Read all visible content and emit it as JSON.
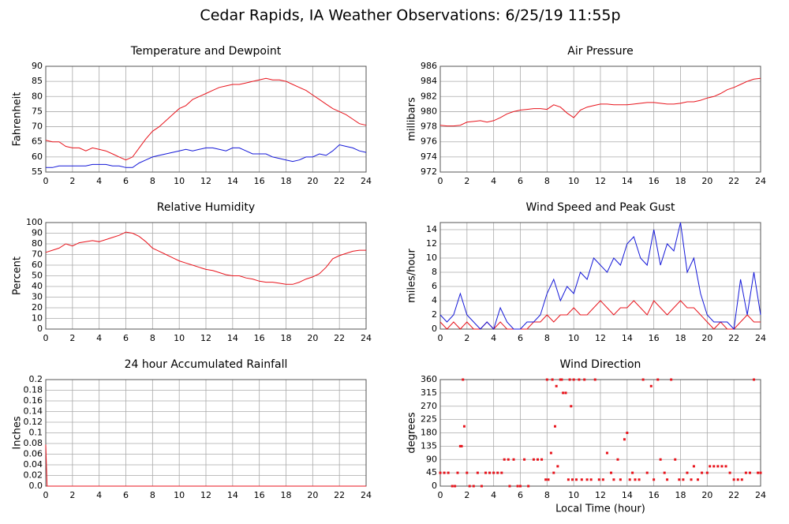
{
  "title": "Cedar Rapids, IA Weather Observations: 6/25/19 11:55p",
  "chart_data": [
    {
      "type": "line",
      "title": "Temperature and Dewpoint",
      "ylabel": "Fahrenheit",
      "grid": true,
      "x": [
        0,
        0.5,
        1,
        1.5,
        2,
        2.5,
        3,
        3.5,
        4,
        4.5,
        5,
        5.5,
        6,
        6.5,
        7,
        7.5,
        8,
        8.5,
        9,
        9.5,
        10,
        10.5,
        11,
        11.5,
        12,
        12.5,
        13,
        13.5,
        14,
        14.5,
        15,
        15.5,
        16,
        16.5,
        17,
        17.5,
        18,
        18.5,
        19,
        19.5,
        20,
        20.5,
        21,
        21.5,
        22,
        22.5,
        23,
        23.5,
        24
      ],
      "series": [
        {
          "color": "#e8141c",
          "values": [
            65.5,
            65,
            65,
            63.5,
            63,
            63,
            62,
            63,
            62.5,
            62,
            61,
            60,
            59,
            60,
            63,
            66,
            68.5,
            70,
            72,
            74,
            76,
            77,
            79,
            80,
            81,
            82,
            83,
            83.5,
            84,
            84,
            84.5,
            85,
            85.5,
            86,
            85.5,
            85.5,
            85,
            84,
            83,
            82,
            80.5,
            79,
            77.5,
            76,
            75,
            74,
            72.5,
            71,
            70.5
          ]
        },
        {
          "color": "#1418d8",
          "values": [
            56.5,
            56.5,
            57,
            57,
            57,
            57,
            57,
            57.5,
            57.5,
            57.5,
            57,
            57,
            56.5,
            56.5,
            58,
            59,
            60,
            60.5,
            61,
            61.5,
            62,
            62.5,
            62,
            62.5,
            63,
            63,
            62.5,
            62,
            63,
            63,
            62,
            61,
            61,
            61,
            60,
            59.5,
            59,
            58.5,
            59,
            60,
            60,
            61,
            60.5,
            62,
            64,
            63.5,
            63,
            62,
            61.5
          ]
        }
      ],
      "xlim": [
        0,
        24
      ],
      "xticks": [
        0,
        2,
        4,
        6,
        8,
        10,
        12,
        14,
        16,
        18,
        20,
        22,
        24
      ],
      "ylim": [
        55,
        90
      ],
      "yticks": [
        55,
        60,
        65,
        70,
        75,
        80,
        85,
        90
      ]
    },
    {
      "type": "line",
      "title": "Air Pressure",
      "ylabel": "millibars",
      "grid": true,
      "x": [
        0,
        0.5,
        1,
        1.5,
        2,
        2.5,
        3,
        3.5,
        4,
        4.5,
        5,
        5.5,
        6,
        6.5,
        7,
        7.5,
        8,
        8.5,
        9,
        9.5,
        10,
        10.5,
        11,
        11.5,
        12,
        12.5,
        13,
        13.5,
        14,
        14.5,
        15,
        15.5,
        16,
        16.5,
        17,
        17.5,
        18,
        18.5,
        19,
        19.5,
        20,
        20.5,
        21,
        21.5,
        22,
        22.5,
        23,
        23.5,
        24
      ],
      "series": [
        {
          "color": "#e8141c",
          "values": [
            978.2,
            978.1,
            978.1,
            978.2,
            978.6,
            978.7,
            978.8,
            978.6,
            978.8,
            979.2,
            979.7,
            980,
            980.2,
            980.3,
            980.4,
            980.4,
            980.3,
            980.9,
            980.6,
            979.8,
            979.2,
            980.2,
            980.6,
            980.8,
            981,
            981,
            980.9,
            980.9,
            980.9,
            981,
            981.1,
            981.2,
            981.2,
            981.1,
            981,
            981,
            981.1,
            981.3,
            981.3,
            981.5,
            981.8,
            982,
            982.4,
            982.9,
            983.2,
            983.6,
            984,
            984.3,
            984.4
          ]
        }
      ],
      "xlim": [
        0,
        24
      ],
      "xticks": [
        0,
        2,
        4,
        6,
        8,
        10,
        12,
        14,
        16,
        18,
        20,
        22,
        24
      ],
      "ylim": [
        972,
        986
      ],
      "yticks": [
        972,
        974,
        976,
        978,
        980,
        982,
        984,
        986
      ]
    },
    {
      "type": "line",
      "title": "Relative Humidity",
      "ylabel": "Percent",
      "grid": true,
      "x": [
        0,
        0.5,
        1,
        1.5,
        2,
        2.5,
        3,
        3.5,
        4,
        4.5,
        5,
        5.5,
        6,
        6.5,
        7,
        7.5,
        8,
        8.5,
        9,
        9.5,
        10,
        10.5,
        11,
        11.5,
        12,
        12.5,
        13,
        13.5,
        14,
        14.5,
        15,
        15.5,
        16,
        16.5,
        17,
        17.5,
        18,
        18.5,
        19,
        19.5,
        20,
        20.5,
        21,
        21.5,
        22,
        22.5,
        23,
        23.5,
        24
      ],
      "series": [
        {
          "color": "#e8141c",
          "values": [
            72,
            74,
            76,
            80,
            78,
            81,
            82,
            83,
            82,
            84,
            86,
            88,
            91,
            90,
            87,
            82,
            76,
            73,
            70,
            67,
            64,
            62,
            60,
            58,
            56,
            55,
            53,
            51,
            50,
            50,
            48,
            47,
            45,
            44,
            44,
            43,
            42,
            42,
            44,
            47,
            49,
            52,
            58,
            66,
            69,
            71,
            73,
            74,
            74
          ]
        }
      ],
      "xlim": [
        0,
        24
      ],
      "xticks": [
        0,
        2,
        4,
        6,
        8,
        10,
        12,
        14,
        16,
        18,
        20,
        22,
        24
      ],
      "ylim": [
        0,
        100
      ],
      "yticks": [
        0,
        10,
        20,
        30,
        40,
        50,
        60,
        70,
        80,
        90,
        100
      ]
    },
    {
      "type": "line",
      "title": "Wind Speed and Peak Gust",
      "ylabel": "miles/hour",
      "grid": true,
      "x": [
        0,
        0.5,
        1,
        1.5,
        2,
        2.5,
        3,
        3.5,
        4,
        4.5,
        5,
        5.5,
        6,
        6.5,
        7,
        7.5,
        8,
        8.5,
        9,
        9.5,
        10,
        10.5,
        11,
        11.5,
        12,
        12.5,
        13,
        13.5,
        14,
        14.5,
        15,
        15.5,
        16,
        16.5,
        17,
        17.5,
        18,
        18.5,
        19,
        19.5,
        20,
        20.5,
        21,
        21.5,
        22,
        22.5,
        23,
        23.5,
        24
      ],
      "series": [
        {
          "color": "#e8141c",
          "values": [
            1,
            0,
            1,
            0,
            1,
            0,
            0,
            1,
            0,
            1,
            0,
            0,
            0,
            0,
            1,
            1,
            2,
            1,
            2,
            2,
            3,
            2,
            2,
            3,
            4,
            3,
            2,
            3,
            3,
            4,
            3,
            2,
            4,
            3,
            2,
            3,
            4,
            3,
            3,
            2,
            1,
            0,
            1,
            0,
            0,
            1,
            2,
            1,
            1
          ]
        },
        {
          "color": "#1418d8",
          "values": [
            2,
            1,
            2,
            5,
            2,
            1,
            0,
            1,
            0,
            3,
            1,
            0,
            0,
            1,
            1,
            2,
            5,
            7,
            4,
            6,
            5,
            8,
            7,
            10,
            9,
            8,
            10,
            9,
            12,
            13,
            10,
            9,
            14,
            9,
            12,
            11,
            15,
            8,
            10,
            5,
            2,
            1,
            1,
            1,
            0,
            7,
            2,
            8,
            2
          ]
        }
      ],
      "xlim": [
        0,
        24
      ],
      "xticks": [
        0,
        2,
        4,
        6,
        8,
        10,
        12,
        14,
        16,
        18,
        20,
        22,
        24
      ],
      "ylim": [
        0,
        15
      ],
      "yticks": [
        0,
        2,
        4,
        6,
        8,
        10,
        12,
        14
      ]
    },
    {
      "type": "line",
      "title": "24 hour Accumulated Rainfall",
      "ylabel": "Inches",
      "grid": true,
      "x": [
        0,
        0.1,
        24
      ],
      "series": [
        {
          "color": "#e8141c",
          "values": [
            0.078,
            0,
            0
          ]
        }
      ],
      "xlim": [
        0,
        24
      ],
      "xticks": [
        0,
        2,
        4,
        6,
        8,
        10,
        12,
        14,
        16,
        18,
        20,
        22,
        24
      ],
      "ylim": [
        0,
        0.2
      ],
      "yticks": [
        {
          "value": 0,
          "label": "0.0"
        },
        0.02,
        0.04,
        0.06,
        0.08,
        0.1,
        0.12,
        0.14,
        0.16,
        0.18,
        0.2
      ]
    },
    {
      "type": "scatter",
      "title": "Wind Direction",
      "ylabel": "degrees",
      "xlabel": "Local Time (hour)",
      "grid": true,
      "color": "#e8141c",
      "x": [
        0,
        0.3,
        0.6,
        0.9,
        1.1,
        1.3,
        1.5,
        1.6,
        1.7,
        1.8,
        2,
        2.2,
        2.5,
        2.8,
        3.1,
        3.4,
        3.7,
        4,
        4.3,
        4.6,
        4.8,
        5.1,
        5.2,
        5.5,
        5.8,
        6,
        6.3,
        6.6,
        7,
        7.3,
        7.6,
        7.9,
        8,
        8.1,
        8.3,
        8.4,
        8.5,
        8.6,
        8.7,
        8.8,
        9,
        9.1,
        9.2,
        9.4,
        9.6,
        9.7,
        9.8,
        9.9,
        10,
        10.2,
        10.4,
        10.6,
        10.8,
        11,
        11.3,
        11.6,
        11.9,
        12.2,
        12.5,
        12.8,
        13,
        13.3,
        13.5,
        13.8,
        14,
        14.2,
        14.4,
        14.6,
        14.9,
        15.2,
        15.5,
        15.8,
        16,
        16.3,
        16.5,
        16.8,
        17,
        17.3,
        17.6,
        17.9,
        18.2,
        18.5,
        18.8,
        19,
        19.3,
        19.6,
        20,
        20.2,
        20.5,
        20.8,
        21.1,
        21.4,
        21.7,
        22,
        22.3,
        22.6,
        22.9,
        23.2,
        23.5,
        23.8,
        24
      ],
      "values": [
        45,
        45,
        45,
        0,
        0,
        45,
        135,
        135,
        360,
        202,
        45,
        0,
        0,
        45,
        0,
        45,
        45,
        45,
        45,
        45,
        90,
        90,
        0,
        90,
        0,
        0,
        90,
        0,
        90,
        90,
        90,
        22,
        360,
        22,
        112,
        360,
        45,
        202,
        338,
        67,
        360,
        360,
        315,
        315,
        22,
        360,
        270,
        22,
        360,
        22,
        360,
        22,
        360,
        22,
        22,
        360,
        22,
        22,
        112,
        45,
        22,
        90,
        22,
        158,
        180,
        22,
        45,
        22,
        22,
        360,
        45,
        338,
        22,
        360,
        90,
        45,
        22,
        360,
        90,
        22,
        22,
        45,
        22,
        67,
        22,
        45,
        45,
        67,
        67,
        67,
        67,
        67,
        45,
        22,
        22,
        22,
        45,
        45,
        360,
        45,
        45
      ],
      "xlim": [
        0,
        24
      ],
      "xticks": [
        0,
        2,
        4,
        6,
        8,
        10,
        12,
        14,
        16,
        18,
        20,
        22,
        24
      ],
      "ylim": [
        0,
        360
      ],
      "yticks": [
        0,
        45,
        90,
        135,
        180,
        225,
        270,
        315,
        360
      ]
    }
  ]
}
